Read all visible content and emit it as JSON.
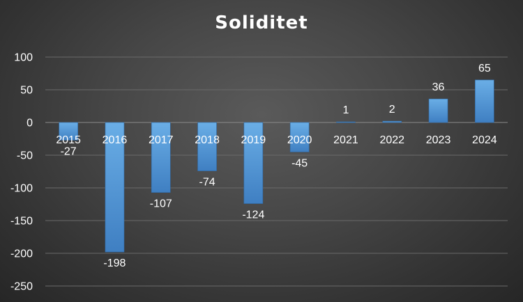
{
  "chart_data": {
    "type": "bar",
    "title": "Soliditet",
    "xlabel": "",
    "ylabel": "",
    "categories": [
      "2015",
      "2016",
      "2017",
      "2018",
      "2019",
      "2020",
      "2021",
      "2022",
      "2023",
      "2024"
    ],
    "values": [
      -27,
      -198,
      -107,
      -74,
      -124,
      -45,
      1,
      2,
      36,
      65
    ],
    "data_labels": [
      "-27",
      "-198",
      "-107",
      "-74",
      "-124",
      "-45",
      "1",
      "2",
      "36",
      "65"
    ],
    "yticks": [
      "100",
      "50",
      "0",
      "-50",
      "-100",
      "-150",
      "-200",
      "-250"
    ],
    "ylim": [
      -250,
      100
    ],
    "grid": true,
    "legend": "none",
    "bar_color": "#5b9bd5",
    "background_color": "#3a3a3a"
  }
}
